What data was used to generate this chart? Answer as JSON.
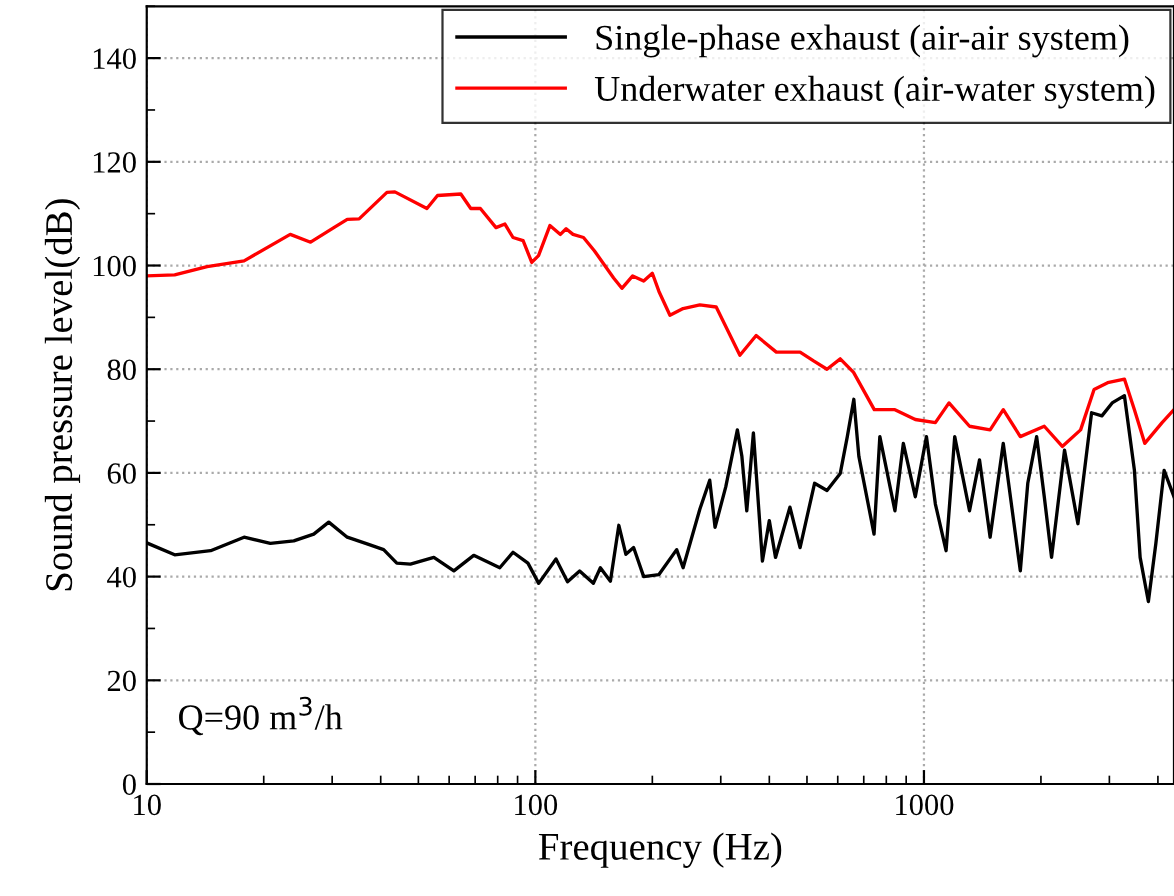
{
  "chart_data": {
    "type": "line",
    "xlabel": "Frequency (Hz)",
    "ylabel": "Sound pressure level(dB)",
    "log": "x",
    "xlim": [
      10,
      4400
    ],
    "xticks": [
      10,
      100,
      1000
    ],
    "ylim": [
      0,
      150
    ],
    "yticks": [
      0,
      20,
      40,
      60,
      80,
      100,
      120,
      140
    ],
    "grid": true,
    "legend": "top right",
    "marker": "none",
    "line_style": "solid",
    "annotations": [
      "Q=90 m$^{3}$/h"
    ],
    "series": [
      {
        "name": "Single-phase exhaust (air-air system)",
        "color": "#000000",
        "x": [
          10,
          11.8,
          14.6,
          17.8,
          20.8,
          23.9,
          26.9,
          29.4,
          32.8,
          36.9,
          40.7,
          44,
          47.7,
          54.8,
          61.7,
          69.4,
          81,
          87.6,
          95.7,
          102,
          113,
          121,
          130,
          141,
          147,
          156,
          164,
          171,
          179,
          190,
          208,
          231,
          240,
          265,
          281,
          290,
          309,
          331,
          340,
          350,
          364,
          384,
          400,
          415,
          452,
          480,
          523,
          563,
          609,
          635,
          660,
          680,
          744,
          770,
          842,
          885,
          950,
          1015,
          1070,
          1140,
          1200,
          1310,
          1390,
          1480,
          1600,
          1770,
          1850,
          1950,
          2040,
          2130,
          2300,
          2490,
          2700,
          2870,
          3050,
          3280,
          3480,
          3600,
          3780,
          3950,
          4150,
          4400
        ],
        "values": [
          46.5,
          44.2,
          45,
          47.6,
          46.4,
          46.9,
          48.2,
          50.5,
          47.6,
          46.3,
          45.2,
          42.6,
          42.4,
          43.7,
          41.1,
          44.1,
          41.7,
          44.7,
          42.6,
          38.7,
          43.4,
          39,
          41.1,
          38.7,
          41.7,
          39.1,
          49.9,
          44.3,
          45.6,
          40,
          40.4,
          45.2,
          41.7,
          53,
          58.6,
          49.5,
          57.3,
          68.3,
          63.2,
          52.7,
          67.7,
          43,
          50.8,
          43.7,
          53.4,
          45.6,
          58,
          56.6,
          59.9,
          67,
          74.2,
          63.2,
          48.2,
          67,
          52.7,
          65.7,
          55.4,
          67,
          54,
          45,
          67,
          52.7,
          62.5,
          47.6,
          65.7,
          41.1,
          58,
          67,
          55.4,
          43.7,
          64.4,
          50.2,
          71.6,
          71,
          73.5,
          74.9,
          60.5,
          43.7,
          35.2,
          46.3,
          60.5,
          55.4
        ]
      },
      {
        "name": "Underwater exhaust (air-water system)",
        "color": "#ff0000",
        "x": [
          10,
          11.8,
          14.3,
          17.8,
          23.4,
          26.4,
          30.3,
          32.8,
          35.2,
          41.5,
          43.5,
          52.6,
          56,
          64.3,
          68.2,
          72.2,
          79.2,
          83.5,
          87.6,
          93,
          97.9,
          101.9,
          109,
          116,
          120,
          125,
          133,
          142,
          159,
          167,
          178,
          190,
          200,
          208,
          222,
          240,
          265,
          292,
          336,
          370,
          417,
          480,
          520,
          563,
          609,
          659,
          745,
          842,
          950,
          1070,
          1160,
          1310,
          1480,
          1600,
          1770,
          2040,
          2270,
          2530,
          2740,
          2970,
          3280,
          3480,
          3700,
          4100,
          4400
        ],
        "values": [
          98,
          98.2,
          99.8,
          100.9,
          106,
          104.5,
          107.3,
          108.9,
          109,
          114.1,
          114.2,
          111,
          113.5,
          113.8,
          111,
          111,
          107.3,
          108,
          105.4,
          104.8,
          100.6,
          101.9,
          107.7,
          106,
          107.1,
          106,
          105.4,
          102.8,
          97.6,
          95.6,
          98,
          97,
          98.5,
          95,
          90.4,
          91.7,
          92.4,
          92,
          82.7,
          86.5,
          83.3,
          83.3,
          81.6,
          80,
          82,
          79.4,
          72.2,
          72.2,
          70.3,
          69.7,
          73.5,
          69,
          68.3,
          72.2,
          67,
          69,
          65.1,
          68.3,
          76.1,
          77.4,
          78.1,
          72.2,
          65.7,
          69.7,
          72.2
        ]
      }
    ]
  }
}
